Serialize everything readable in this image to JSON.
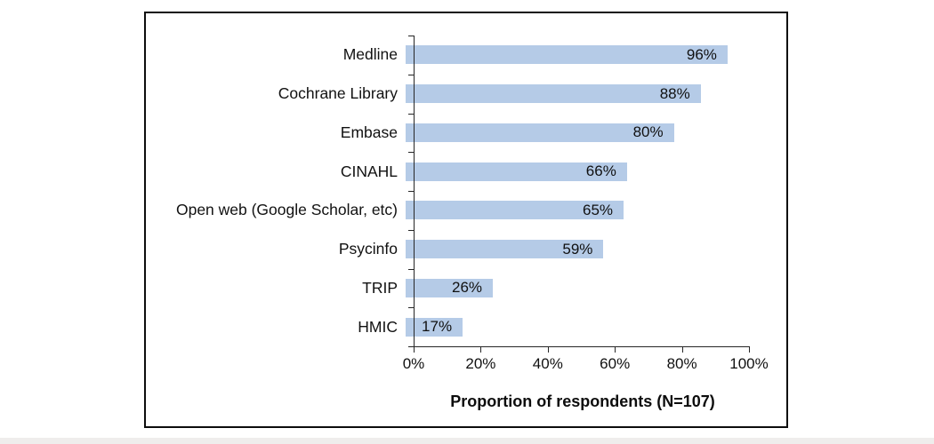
{
  "chart_data": {
    "type": "bar",
    "orientation": "horizontal",
    "categories": [
      "Medline",
      "Cochrane Library",
      "Embase",
      "CINAHL",
      "Open web (Google Scholar, etc)",
      "Psycinfo",
      "TRIP",
      "HMIC"
    ],
    "values": [
      96,
      88,
      80,
      66,
      65,
      59,
      26,
      17
    ],
    "value_labels": [
      "96%",
      "88%",
      "80%",
      "66%",
      "65%",
      "59%",
      "26%",
      "17%"
    ],
    "title": "",
    "xlabel": "Proportion of respondents (N=107)",
    "ylabel": "",
    "x_ticks": [
      "0%",
      "20%",
      "40%",
      "60%",
      "80%",
      "100%"
    ],
    "x_tick_values": [
      0,
      20,
      40,
      60,
      80,
      100
    ],
    "xlim": [
      0,
      100
    ],
    "grid": false,
    "legend": false,
    "bar_color": "#b5cbe7",
    "axis_color": "#262626",
    "text_color": "#111111",
    "frame_border_color": "#0d0d0d"
  }
}
